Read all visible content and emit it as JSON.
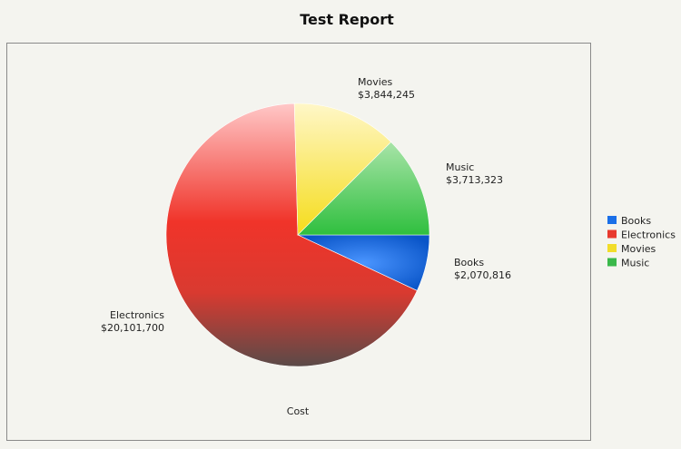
{
  "chart_data": {
    "type": "pie",
    "title": "Test Report",
    "xlabel": "Cost",
    "legend_position": "right",
    "categories": [
      "Books",
      "Electronics",
      "Movies",
      "Music"
    ],
    "values": [
      2070816,
      20101700,
      3844245,
      3713323
    ],
    "value_labels": [
      "$2,070,816",
      "$20,101,700",
      "$3,844,245",
      "$3,713,323"
    ],
    "colors": [
      "#1a6fe8",
      "#e83a2e",
      "#f2dd2a",
      "#3ab84a"
    ],
    "start_angle_deg": 0,
    "direction": "clockwise"
  }
}
